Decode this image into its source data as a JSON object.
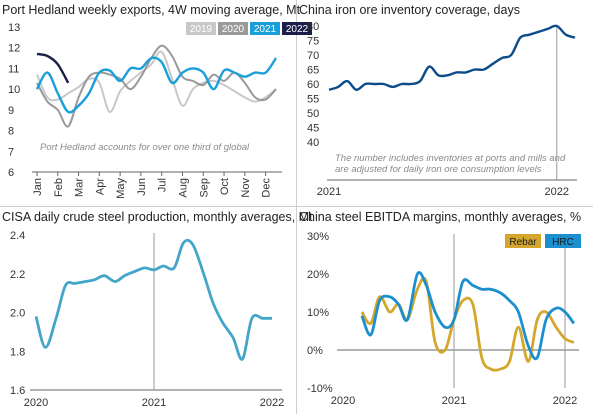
{
  "chart_data": [
    {
      "id": "ph",
      "type": "line",
      "title": "Port Hedland weekly exports, 4W moving average, Mt",
      "categories": [
        "Jan",
        "Feb",
        "Mar",
        "Apr",
        "May",
        "Jun",
        "Jul",
        "Aug",
        "Sep",
        "Oct",
        "Nov",
        "Dec"
      ],
      "ylim": [
        6,
        13
      ],
      "yticks": [
        6,
        7,
        8,
        9,
        10,
        11,
        12,
        13
      ],
      "annotation": "Port Hedland accounts for over one third of global",
      "legend_position": "top-right",
      "series": [
        {
          "name": "2019",
          "color": "#c8c8c8",
          "x": [
            0,
            0.5,
            1,
            1.5,
            2,
            2.5,
            3,
            3.5,
            4,
            4.5,
            5,
            5.5,
            6,
            6.5,
            7,
            7.5,
            8,
            8.5,
            9,
            9.5,
            10,
            10.5,
            11,
            11.5
          ],
          "values": [
            10.7,
            9.6,
            9.5,
            9.8,
            10.1,
            10.5,
            10.3,
            8.9,
            9.9,
            10.4,
            10.8,
            11.2,
            11.8,
            10.5,
            9.2,
            10.0,
            10.3,
            10.4,
            10.2,
            9.9,
            9.6,
            9.4,
            9.6,
            10.0
          ]
        },
        {
          "name": "2020",
          "color": "#9a9a9a",
          "x": [
            0,
            0.5,
            1,
            1.5,
            2,
            2.5,
            3,
            3.5,
            4,
            4.5,
            5,
            5.5,
            6,
            6.5,
            7,
            7.5,
            8,
            8.5,
            9,
            9.5,
            10,
            10.5,
            11,
            11.5
          ],
          "values": [
            10.3,
            9.4,
            9.0,
            8.2,
            9.6,
            10.6,
            10.8,
            10.7,
            10.5,
            10.0,
            10.6,
            11.5,
            12.1,
            11.6,
            10.6,
            10.4,
            10.2,
            10.7,
            10.4,
            10.8,
            10.3,
            9.6,
            9.5,
            10.0
          ]
        },
        {
          "name": "2021",
          "color": "#1a9fd9",
          "x": [
            0,
            0.5,
            1,
            1.5,
            2,
            2.5,
            3,
            3.5,
            4,
            4.5,
            5,
            5.5,
            6,
            6.5,
            7,
            7.5,
            8,
            8.5,
            9,
            9.5,
            10,
            10.5,
            11,
            11.5
          ],
          "values": [
            10.0,
            10.8,
            9.8,
            8.9,
            9.2,
            9.8,
            10.8,
            10.9,
            10.4,
            11.0,
            11.0,
            11.5,
            11.3,
            10.3,
            10.8,
            11.0,
            10.8,
            10.0,
            10.9,
            10.8,
            10.6,
            10.8,
            10.8,
            11.5
          ]
        },
        {
          "name": "2022",
          "color": "#1b1f4a",
          "x": [
            0,
            0.5,
            1,
            1.5
          ],
          "values": [
            11.7,
            11.6,
            11.2,
            10.3
          ]
        }
      ]
    },
    {
      "id": "inv",
      "type": "line",
      "title": "China iron ore inventory coverage, days",
      "xticks": [
        "2021",
        "2022"
      ],
      "ylim": [
        40,
        80
      ],
      "yticks": [
        40,
        45,
        50,
        55,
        60,
        65,
        70,
        75,
        80
      ],
      "annotation": [
        "The number includes inventories at ports and mills and",
        "are adjusted for daily iron ore consumption levels"
      ],
      "series": [
        {
          "name": "",
          "color": "#0c4c8a",
          "x": [
            2021.0,
            2021.04,
            2021.08,
            2021.12,
            2021.16,
            2021.2,
            2021.24,
            2021.28,
            2021.32,
            2021.36,
            2021.4,
            2021.44,
            2021.48,
            2021.52,
            2021.56,
            2021.6,
            2021.64,
            2021.68,
            2021.72,
            2021.76,
            2021.8,
            2021.84,
            2021.88,
            2021.92,
            2021.96,
            2022.0,
            2022.04,
            2022.08
          ],
          "values": [
            58,
            59,
            61,
            58,
            60,
            60,
            60,
            59,
            60,
            60,
            61,
            66,
            63,
            63,
            64,
            64,
            65,
            65,
            67,
            69,
            70,
            76,
            77,
            78,
            79,
            80,
            77,
            76
          ]
        }
      ]
    },
    {
      "id": "cisa",
      "type": "line",
      "title": "CISA daily crude steel production, monthly averages, Mt",
      "xticks": [
        "2020",
        "2021",
        "2022"
      ],
      "ylim": [
        1.6,
        2.4
      ],
      "yticks": [
        1.6,
        1.8,
        2.0,
        2.2,
        2.4
      ],
      "series": [
        {
          "name": "",
          "color": "#43a6c8",
          "x": [
            2020.0,
            2020.08,
            2020.17,
            2020.25,
            2020.33,
            2020.42,
            2020.5,
            2020.58,
            2020.67,
            2020.75,
            2020.83,
            2020.92,
            2021.0,
            2021.08,
            2021.17,
            2021.25,
            2021.33,
            2021.42,
            2021.5,
            2021.58,
            2021.67,
            2021.75,
            2021.83,
            2021.92,
            2022.0
          ],
          "values": [
            1.98,
            1.82,
            1.97,
            2.14,
            2.15,
            2.16,
            2.17,
            2.19,
            2.16,
            2.19,
            2.21,
            2.23,
            2.22,
            2.24,
            2.23,
            2.36,
            2.35,
            2.2,
            2.05,
            1.95,
            1.87,
            1.76,
            1.97,
            1.97,
            1.97
          ]
        }
      ]
    },
    {
      "id": "ebitda",
      "type": "line",
      "title": "China steel EBITDA margins, monthly averages, %",
      "xticks": [
        "2020",
        "2021",
        "2022"
      ],
      "ylim": [
        -10,
        30
      ],
      "yticks": [
        -10,
        0,
        10,
        20,
        30
      ],
      "ytick_labels": [
        "-10%",
        "0%",
        "10%",
        "20%",
        "30%"
      ],
      "legend_position": "top-right",
      "series": [
        {
          "name": "Rebar",
          "color": "#d4a72c",
          "x": [
            2020.17,
            2020.25,
            2020.33,
            2020.42,
            2020.5,
            2020.58,
            2020.67,
            2020.75,
            2020.83,
            2020.92,
            2021.0,
            2021.08,
            2021.17,
            2021.25,
            2021.33,
            2021.42,
            2021.5,
            2021.58,
            2021.67,
            2021.75,
            2021.83,
            2021.92,
            2022.0,
            2022.08
          ],
          "values": [
            10,
            7,
            14,
            10,
            12,
            8,
            16,
            18,
            2,
            0,
            8,
            13,
            12,
            -2,
            -5,
            -5,
            -3,
            6,
            -3,
            8,
            10,
            6,
            3,
            2
          ]
        },
        {
          "name": "HRC",
          "color": "#1c8fcf",
          "x": [
            2020.17,
            2020.25,
            2020.33,
            2020.42,
            2020.5,
            2020.58,
            2020.67,
            2020.75,
            2020.83,
            2020.92,
            2021.0,
            2021.08,
            2021.17,
            2021.25,
            2021.33,
            2021.42,
            2021.5,
            2021.58,
            2021.67,
            2021.75,
            2021.83,
            2021.92,
            2022.0,
            2022.08
          ],
          "values": [
            9,
            4,
            13,
            14,
            12,
            8,
            20,
            17,
            10,
            6,
            8,
            18,
            17,
            16,
            16,
            15,
            13,
            10,
            1,
            -2,
            8,
            11,
            10,
            7
          ]
        }
      ]
    }
  ]
}
